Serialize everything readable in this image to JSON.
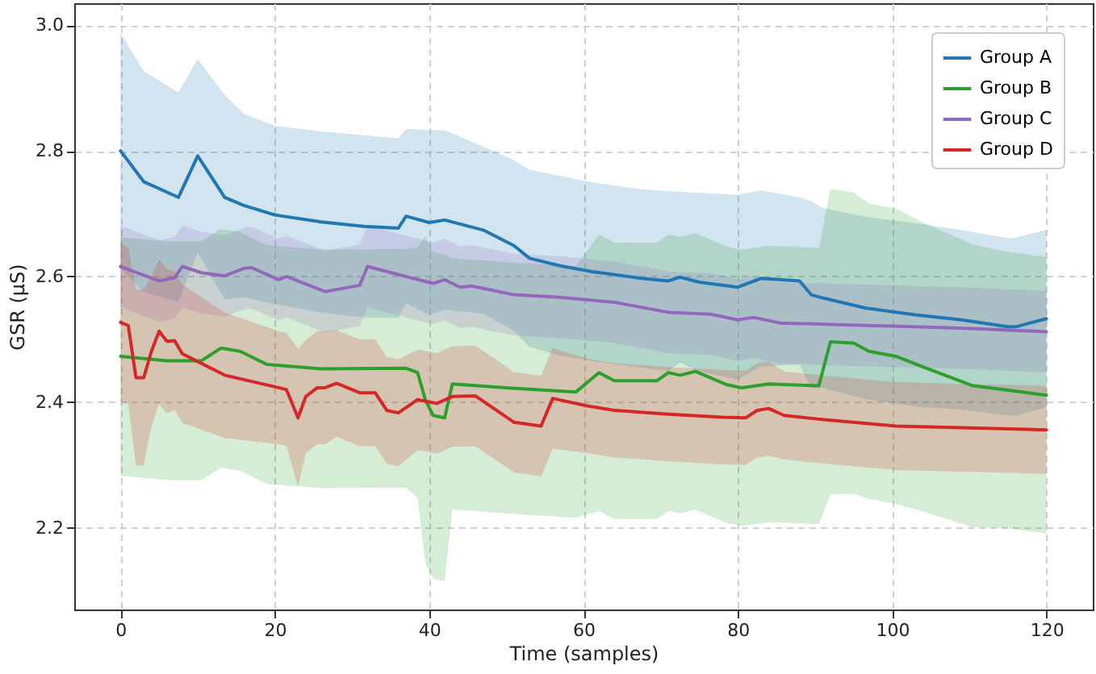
{
  "chart_data": {
    "type": "line",
    "xlabel": "Time (samples)",
    "ylabel": "GSR (μS)",
    "xlim": [
      -6,
      126
    ],
    "ylim": [
      2.07,
      3.035
    ],
    "xticks": [
      0,
      20,
      40,
      60,
      80,
      100,
      120
    ],
    "yticks": [
      {
        "value": 2.2,
        "label": "2.2"
      },
      {
        "value": 2.4,
        "label": "2.4"
      },
      {
        "value": 2.6,
        "label": "2.6"
      },
      {
        "value": 2.8,
        "label": "2.8"
      },
      {
        "value": 3,
        "label": "3.0"
      }
    ],
    "grid": true,
    "legend": "top right",
    "line_style": "solid",
    "series": [
      {
        "name": "Group A",
        "color": "#1f77b4",
        "x": [
          0,
          3,
          7.5,
          10,
          13.5,
          16,
          20,
          26,
          31.5,
          36,
          37,
          40,
          42,
          47,
          51,
          53,
          57,
          61,
          67.5,
          71,
          72.5,
          75,
          80,
          83,
          88,
          89.5,
          91,
          96.5,
          103,
          109,
          115,
          116,
          120
        ],
        "values": [
          2.8,
          2.751,
          2.726,
          2.792,
          2.726,
          2.713,
          2.698,
          2.687,
          2.68,
          2.677,
          2.696,
          2.686,
          2.69,
          2.674,
          2.649,
          2.629,
          2.617,
          2.608,
          2.597,
          2.593,
          2.599,
          2.591,
          2.583,
          2.597,
          2.593,
          2.571,
          2.566,
          2.55,
          2.539,
          2.531,
          2.52,
          2.52,
          2.533
        ],
        "lower": [
          2.613,
          2.575,
          2.559,
          2.638,
          2.563,
          2.567,
          2.556,
          2.543,
          2.535,
          2.534,
          2.557,
          2.539,
          2.547,
          2.541,
          2.513,
          2.488,
          2.474,
          2.466,
          2.455,
          2.45,
          2.463,
          2.449,
          2.436,
          2.457,
          2.46,
          2.422,
          2.423,
          2.405,
          2.393,
          2.388,
          2.379,
          2.378,
          2.392
        ],
        "upper": [
          2.987,
          2.927,
          2.893,
          2.946,
          2.889,
          2.859,
          2.84,
          2.831,
          2.825,
          2.82,
          2.835,
          2.833,
          2.833,
          2.807,
          2.785,
          2.77,
          2.76,
          2.75,
          2.739,
          2.736,
          2.735,
          2.733,
          2.73,
          2.737,
          2.726,
          2.72,
          2.709,
          2.695,
          2.685,
          2.674,
          2.661,
          2.662,
          2.674
        ]
      },
      {
        "name": "Group B",
        "color": "#2ca02c",
        "x": [
          0,
          6,
          10.5,
          13,
          15.5,
          19,
          26,
          37,
          38.5,
          39.5,
          40.5,
          42,
          43,
          50,
          59,
          62,
          64,
          69.5,
          71,
          72.5,
          74.5,
          78.5,
          80.5,
          84,
          90.5,
          92,
          95,
          97,
          100.5,
          104,
          110.5,
          114.5,
          120
        ],
        "values": [
          2.473,
          2.466,
          2.466,
          2.486,
          2.481,
          2.46,
          2.453,
          2.454,
          2.447,
          2.404,
          2.379,
          2.375,
          2.429,
          2.423,
          2.416,
          2.447,
          2.434,
          2.434,
          2.447,
          2.443,
          2.449,
          2.428,
          2.423,
          2.429,
          2.426,
          2.496,
          2.494,
          2.481,
          2.473,
          2.456,
          2.426,
          2.42,
          2.411
        ],
        "lower": [
          2.283,
          2.276,
          2.276,
          2.296,
          2.291,
          2.27,
          2.263,
          2.264,
          2.247,
          2.144,
          2.119,
          2.115,
          2.229,
          2.223,
          2.216,
          2.227,
          2.214,
          2.214,
          2.227,
          2.223,
          2.229,
          2.208,
          2.203,
          2.209,
          2.206,
          2.253,
          2.254,
          2.246,
          2.238,
          2.226,
          2.201,
          2.2,
          2.191
        ],
        "upper": [
          2.663,
          2.656,
          2.656,
          2.676,
          2.671,
          2.65,
          2.643,
          2.644,
          2.647,
          2.664,
          2.639,
          2.635,
          2.629,
          2.623,
          2.616,
          2.667,
          2.654,
          2.654,
          2.667,
          2.663,
          2.669,
          2.648,
          2.643,
          2.649,
          2.646,
          2.739,
          2.734,
          2.716,
          2.708,
          2.686,
          2.651,
          2.64,
          2.631
        ]
      },
      {
        "name": "Group C",
        "color": "#9467bd",
        "x": [
          0,
          3,
          5,
          7,
          8,
          10.5,
          13.5,
          16,
          17,
          20.5,
          21.5,
          26.5,
          31,
          32,
          37,
          40.5,
          42,
          44,
          45.5,
          51,
          57,
          64,
          71,
          76.5,
          80,
          82,
          85.5,
          94,
          103,
          111,
          120
        ],
        "values": [
          2.616,
          2.602,
          2.593,
          2.598,
          2.616,
          2.606,
          2.601,
          2.613,
          2.614,
          2.595,
          2.6,
          2.576,
          2.586,
          2.616,
          2.6,
          2.589,
          2.595,
          2.583,
          2.585,
          2.571,
          2.567,
          2.559,
          2.543,
          2.54,
          2.531,
          2.535,
          2.526,
          2.523,
          2.52,
          2.517,
          2.512
        ],
        "lower": [
          2.551,
          2.537,
          2.528,
          2.533,
          2.551,
          2.541,
          2.536,
          2.548,
          2.549,
          2.53,
          2.535,
          2.511,
          2.521,
          2.551,
          2.535,
          2.524,
          2.53,
          2.518,
          2.52,
          2.506,
          2.502,
          2.494,
          2.478,
          2.475,
          2.466,
          2.47,
          2.461,
          2.458,
          2.455,
          2.452,
          2.447
        ],
        "upper": [
          2.681,
          2.667,
          2.658,
          2.663,
          2.681,
          2.671,
          2.666,
          2.678,
          2.679,
          2.66,
          2.665,
          2.641,
          2.651,
          2.681,
          2.665,
          2.654,
          2.66,
          2.648,
          2.65,
          2.636,
          2.632,
          2.624,
          2.608,
          2.605,
          2.596,
          2.6,
          2.591,
          2.588,
          2.585,
          2.582,
          2.577
        ]
      },
      {
        "name": "Group D",
        "color": "#d62728",
        "x": [
          0,
          1,
          2,
          3,
          4,
          5,
          6,
          7,
          8,
          13.5,
          20.5,
          21.5,
          23,
          24,
          25.5,
          26.5,
          28,
          31,
          33,
          34.5,
          36,
          38.5,
          41,
          43,
          46,
          51,
          54.5,
          56,
          60.5,
          64,
          71,
          78,
          81,
          82.5,
          84,
          86,
          90.5,
          100.5,
          120
        ],
        "values": [
          2.527,
          2.522,
          2.439,
          2.439,
          2.481,
          2.513,
          2.497,
          2.498,
          2.477,
          2.443,
          2.423,
          2.42,
          2.375,
          2.409,
          2.423,
          2.423,
          2.43,
          2.415,
          2.415,
          2.387,
          2.383,
          2.404,
          2.398,
          2.409,
          2.41,
          2.368,
          2.362,
          2.406,
          2.394,
          2.387,
          2.381,
          2.376,
          2.375,
          2.387,
          2.39,
          2.379,
          2.373,
          2.362,
          2.356
        ],
        "lower": [
          2.401,
          2.397,
          2.299,
          2.299,
          2.361,
          2.398,
          2.382,
          2.388,
          2.367,
          2.343,
          2.333,
          2.33,
          2.265,
          2.319,
          2.333,
          2.333,
          2.345,
          2.33,
          2.33,
          2.302,
          2.298,
          2.324,
          2.318,
          2.329,
          2.33,
          2.288,
          2.282,
          2.326,
          2.319,
          2.312,
          2.306,
          2.301,
          2.3,
          2.312,
          2.315,
          2.309,
          2.303,
          2.292,
          2.286
        ],
        "upper": [
          2.653,
          2.647,
          2.579,
          2.579,
          2.601,
          2.628,
          2.612,
          2.608,
          2.587,
          2.543,
          2.513,
          2.51,
          2.485,
          2.499,
          2.513,
          2.513,
          2.515,
          2.5,
          2.5,
          2.472,
          2.468,
          2.484,
          2.478,
          2.489,
          2.49,
          2.448,
          2.442,
          2.486,
          2.469,
          2.462,
          2.456,
          2.451,
          2.45,
          2.462,
          2.465,
          2.449,
          2.443,
          2.432,
          2.426
        ]
      }
    ]
  }
}
